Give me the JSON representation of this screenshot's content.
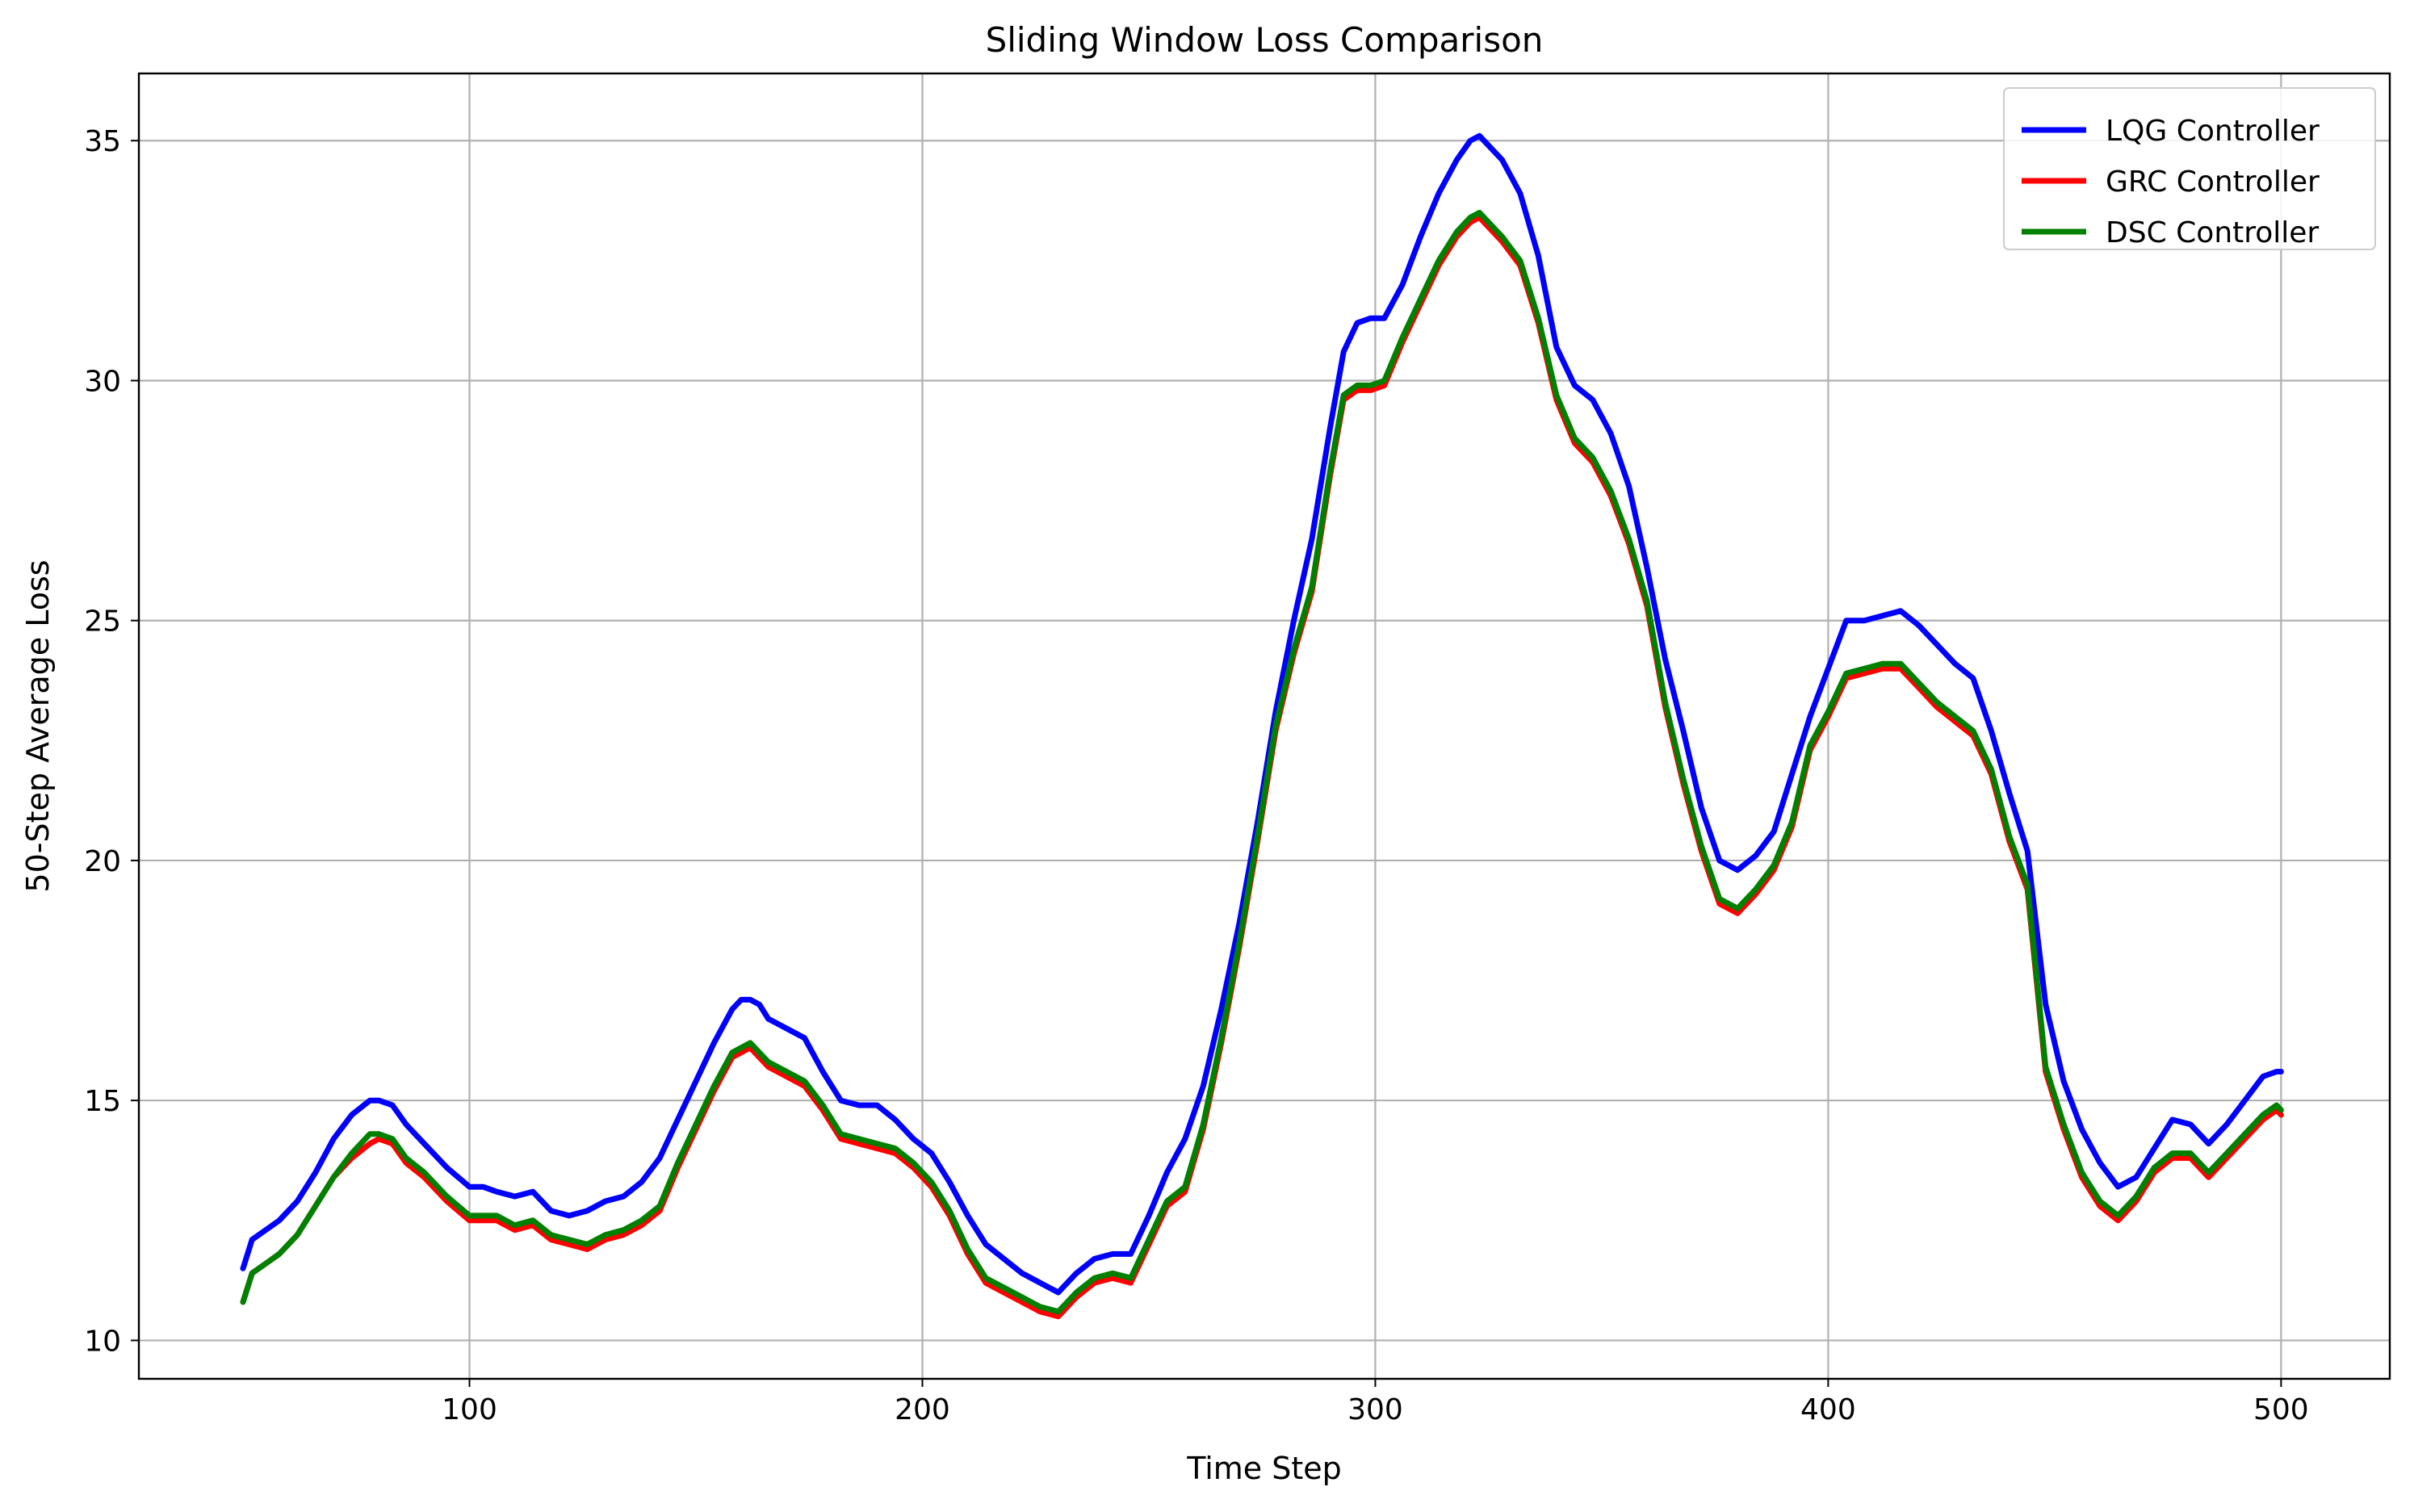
{
  "chart_data": {
    "type": "line",
    "title": "Sliding Window Loss Comparison",
    "xlabel": "Time Step",
    "ylabel": "50-Step Average Loss",
    "xlim": [
      27,
      524
    ],
    "ylim": [
      9.2,
      36.4
    ],
    "xticks": [
      100,
      200,
      300,
      400,
      500
    ],
    "yticks": [
      10,
      15,
      20,
      25,
      30,
      35
    ],
    "xtick_labels": [
      "100",
      "200",
      "300",
      "400",
      "500"
    ],
    "ytick_labels": [
      "10",
      "15",
      "20",
      "25",
      "30",
      "35"
    ],
    "grid": true,
    "legend_position": "top-right",
    "x": [
      50,
      52,
      55,
      58,
      62,
      66,
      70,
      74,
      78,
      80,
      83,
      86,
      90,
      95,
      100,
      103,
      106,
      110,
      114,
      118,
      122,
      126,
      130,
      134,
      138,
      142,
      146,
      150,
      154,
      158,
      160,
      162,
      164,
      166,
      170,
      174,
      178,
      182,
      186,
      190,
      194,
      198,
      202,
      206,
      210,
      214,
      218,
      222,
      226,
      230,
      234,
      238,
      242,
      246,
      250,
      254,
      258,
      262,
      266,
      270,
      274,
      278,
      282,
      286,
      290,
      293,
      296,
      299,
      302,
      306,
      310,
      314,
      318,
      321,
      323,
      325,
      328,
      332,
      336,
      340,
      344,
      348,
      352,
      356,
      360,
      364,
      368,
      372,
      376,
      380,
      384,
      388,
      392,
      396,
      400,
      404,
      408,
      412,
      416,
      420,
      424,
      428,
      432,
      436,
      440,
      444,
      448,
      452,
      456,
      460,
      464,
      468,
      472,
      476,
      480,
      484,
      488,
      492,
      496,
      499,
      500
    ],
    "series": [
      {
        "name": "LQG Controller",
        "color": "#0000ff",
        "values": [
          11.5,
          12.1,
          12.3,
          12.5,
          12.9,
          13.5,
          14.2,
          14.7,
          15.0,
          15.0,
          14.9,
          14.5,
          14.1,
          13.6,
          13.2,
          13.2,
          13.1,
          13.0,
          13.1,
          12.7,
          12.6,
          12.7,
          12.9,
          13.0,
          13.3,
          13.8,
          14.6,
          15.4,
          16.2,
          16.9,
          17.1,
          17.1,
          17.0,
          16.7,
          16.5,
          16.3,
          15.6,
          15.0,
          14.9,
          14.9,
          14.6,
          14.2,
          13.9,
          13.3,
          12.6,
          12.0,
          11.7,
          11.4,
          11.2,
          11.0,
          11.4,
          11.7,
          11.8,
          11.8,
          12.6,
          13.5,
          14.2,
          15.3,
          16.9,
          18.7,
          20.8,
          23.1,
          25.0,
          26.7,
          29.0,
          30.6,
          31.2,
          31.3,
          31.3,
          32.0,
          33.0,
          33.9,
          34.6,
          35.0,
          35.1,
          34.9,
          34.6,
          33.9,
          32.6,
          30.7,
          29.9,
          29.6,
          28.9,
          27.8,
          26.1,
          24.2,
          22.7,
          21.1,
          20.0,
          19.8,
          20.1,
          20.6,
          21.8,
          23.0,
          24.0,
          25.0,
          25.0,
          25.1,
          25.2,
          24.9,
          24.5,
          24.1,
          23.8,
          22.7,
          21.4,
          20.2,
          17.0,
          15.4,
          14.4,
          13.7,
          13.2,
          13.4,
          14.0,
          14.6,
          14.5,
          14.1,
          14.5,
          15.0,
          15.5,
          15.6,
          15.6
        ]
      },
      {
        "name": "GRC Controller",
        "color": "#ff0000",
        "values": [
          10.8,
          11.4,
          11.6,
          11.8,
          12.2,
          12.8,
          13.4,
          13.8,
          14.1,
          14.2,
          14.1,
          13.7,
          13.4,
          12.9,
          12.5,
          12.5,
          12.5,
          12.3,
          12.4,
          12.1,
          12.0,
          11.9,
          12.1,
          12.2,
          12.4,
          12.7,
          13.6,
          14.4,
          15.2,
          15.9,
          16.0,
          16.1,
          15.9,
          15.7,
          15.5,
          15.3,
          14.8,
          14.2,
          14.1,
          14.0,
          13.9,
          13.6,
          13.2,
          12.6,
          11.8,
          11.2,
          11.0,
          10.8,
          10.6,
          10.5,
          10.9,
          11.2,
          11.3,
          11.2,
          12.0,
          12.8,
          13.1,
          14.4,
          16.2,
          18.2,
          20.4,
          22.7,
          24.3,
          25.6,
          28.0,
          29.6,
          29.8,
          29.8,
          29.9,
          30.8,
          31.6,
          32.4,
          33.0,
          33.3,
          33.4,
          33.2,
          32.9,
          32.4,
          31.2,
          29.6,
          28.7,
          28.3,
          27.6,
          26.6,
          25.3,
          23.2,
          21.6,
          20.2,
          19.1,
          18.9,
          19.3,
          19.8,
          20.7,
          22.3,
          23.0,
          23.8,
          23.9,
          24.0,
          24.0,
          23.6,
          23.2,
          22.9,
          22.6,
          21.8,
          20.4,
          19.4,
          15.6,
          14.4,
          13.4,
          12.8,
          12.5,
          12.9,
          13.5,
          13.8,
          13.8,
          13.4,
          13.8,
          14.2,
          14.6,
          14.8,
          14.7
        ]
      },
      {
        "name": "DSC Controller",
        "color": "#008000",
        "values": [
          10.8,
          11.4,
          11.6,
          11.8,
          12.2,
          12.8,
          13.4,
          13.9,
          14.3,
          14.3,
          14.2,
          13.8,
          13.5,
          13.0,
          12.6,
          12.6,
          12.6,
          12.4,
          12.5,
          12.2,
          12.1,
          12.0,
          12.2,
          12.3,
          12.5,
          12.8,
          13.7,
          14.5,
          15.3,
          16.0,
          16.1,
          16.2,
          16.0,
          15.8,
          15.6,
          15.4,
          14.9,
          14.3,
          14.2,
          14.1,
          14.0,
          13.7,
          13.3,
          12.7,
          11.9,
          11.3,
          11.1,
          10.9,
          10.7,
          10.6,
          11.0,
          11.3,
          11.4,
          11.3,
          12.1,
          12.9,
          13.2,
          14.5,
          16.3,
          18.3,
          20.5,
          22.8,
          24.4,
          25.7,
          28.1,
          29.7,
          29.9,
          29.9,
          30.0,
          30.9,
          31.7,
          32.5,
          33.1,
          33.4,
          33.5,
          33.3,
          33.0,
          32.5,
          31.3,
          29.7,
          28.8,
          28.4,
          27.7,
          26.7,
          25.4,
          23.3,
          21.7,
          20.3,
          19.2,
          19.0,
          19.4,
          19.9,
          20.8,
          22.4,
          23.1,
          23.9,
          24.0,
          24.1,
          24.1,
          23.7,
          23.3,
          23.0,
          22.7,
          21.9,
          20.5,
          19.5,
          15.7,
          14.5,
          13.5,
          12.9,
          12.6,
          13.0,
          13.6,
          13.9,
          13.9,
          13.5,
          13.9,
          14.3,
          14.7,
          14.9,
          14.8
        ]
      }
    ]
  }
}
